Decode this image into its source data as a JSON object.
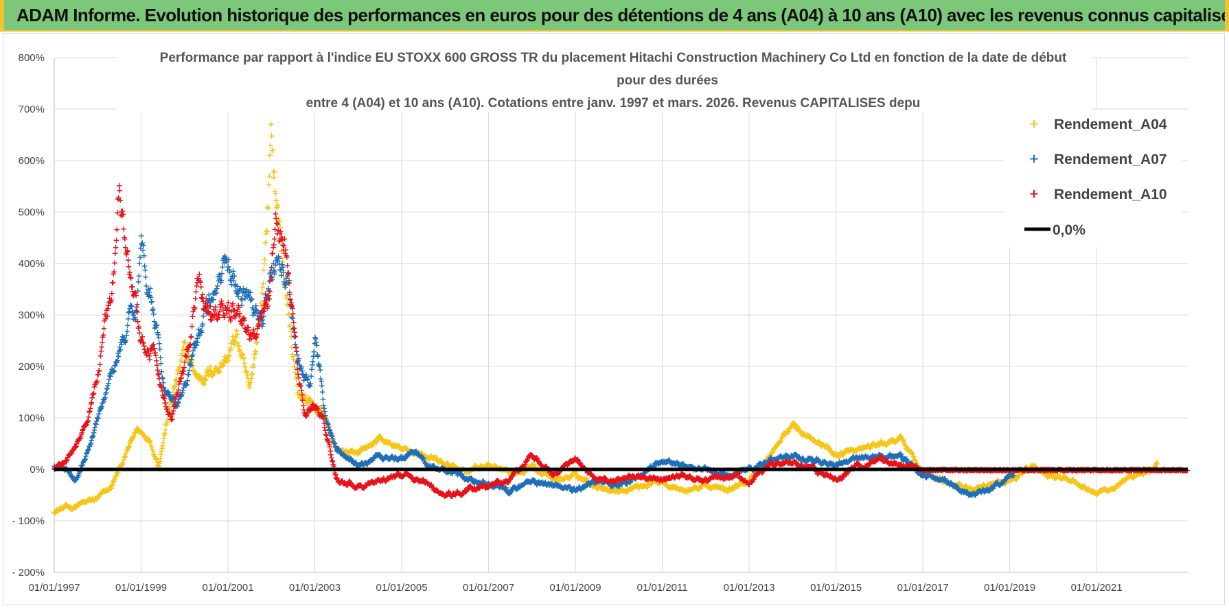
{
  "banner": {
    "title": "ADAM Informe. Evolution historique des performances en euros pour des détentions de 4 ans (A04) à 10 ans (A10) avec les revenus connus capitalisés"
  },
  "chart_data": {
    "type": "scatter",
    "title_lines": [
      "Performance par rapport à l'indice EU STOXX 600 GROSS TR  du placement Hitachi Construction Machinery Co Ltd en fonction de la date de début",
      "pour des durées",
      "entre 4 (A04) et 10 ans (A10). Cotations entre janv. 1997 et mars. 2026. Revenus CAPITALISES depu"
    ],
    "y_ticks": [
      "800%",
      "700%",
      "600%",
      "500%",
      "400%",
      "300%",
      "200%",
      "100%",
      "0%",
      "- 100%",
      "- 200%"
    ],
    "x_ticks": [
      "01/01/1997",
      "01/01/1999",
      "01/01/2001",
      "01/01/2003",
      "01/01/2005",
      "01/01/2007",
      "01/01/2009",
      "01/01/2011",
      "01/01/2013",
      "01/01/2015",
      "01/01/2017",
      "01/01/2019",
      "01/01/2021"
    ],
    "xlim": [
      1997.0,
      2023.1
    ],
    "ylim": [
      -200,
      800
    ],
    "grid": true,
    "legend_position": "top-right",
    "series": [
      {
        "name": "Rendement_A04",
        "color": "#f5c518",
        "end": 2022.4,
        "keypoints": [
          [
            1997.0,
            -78
          ],
          [
            1997.5,
            -70
          ],
          [
            1998.0,
            -55
          ],
          [
            1998.3,
            -35
          ],
          [
            1998.6,
            20
          ],
          [
            1998.9,
            80
          ],
          [
            1999.2,
            60
          ],
          [
            1999.4,
            10
          ],
          [
            1999.7,
            140
          ],
          [
            2000.0,
            230
          ],
          [
            2000.3,
            180
          ],
          [
            2000.6,
            190
          ],
          [
            2001.0,
            220
          ],
          [
            2001.2,
            260
          ],
          [
            2001.5,
            150
          ],
          [
            2001.8,
            350
          ],
          [
            2002.0,
            640
          ],
          [
            2002.2,
            450
          ],
          [
            2002.4,
            300
          ],
          [
            2002.6,
            150
          ],
          [
            2003.0,
            120
          ],
          [
            2003.2,
            110
          ],
          [
            2003.5,
            40
          ],
          [
            2004.0,
            30
          ],
          [
            2004.5,
            60
          ],
          [
            2005.0,
            40
          ],
          [
            2005.5,
            30
          ],
          [
            2006.0,
            10
          ],
          [
            2006.5,
            0
          ],
          [
            2007.0,
            10
          ],
          [
            2007.5,
            -10
          ],
          [
            2008.0,
            10
          ],
          [
            2008.5,
            -20
          ],
          [
            2009.0,
            -10
          ],
          [
            2009.5,
            -30
          ],
          [
            2010.0,
            -40
          ],
          [
            2010.5,
            -30
          ],
          [
            2011.0,
            -20
          ],
          [
            2011.5,
            -40
          ],
          [
            2012.0,
            -30
          ],
          [
            2012.5,
            -40
          ],
          [
            2013.0,
            -20
          ],
          [
            2013.5,
            30
          ],
          [
            2014.0,
            90
          ],
          [
            2014.5,
            60
          ],
          [
            2015.0,
            30
          ],
          [
            2015.5,
            40
          ],
          [
            2016.0,
            50
          ],
          [
            2016.5,
            60
          ],
          [
            2017.0,
            -5
          ],
          [
            2017.5,
            -20
          ],
          [
            2018.0,
            -40
          ],
          [
            2018.5,
            -30
          ],
          [
            2019.0,
            -20
          ],
          [
            2019.5,
            10
          ],
          [
            2020.0,
            -10
          ],
          [
            2020.5,
            -20
          ],
          [
            2021.0,
            -45
          ],
          [
            2021.5,
            -30
          ],
          [
            2022.0,
            -10
          ],
          [
            2022.4,
            10
          ]
        ]
      },
      {
        "name": "Rendement_A07",
        "color": "#1f6fb8",
        "end": 2019.1,
        "keypoints": [
          [
            1997.0,
            10
          ],
          [
            1997.3,
            0
          ],
          [
            1997.5,
            -20
          ],
          [
            1997.8,
            40
          ],
          [
            1998.0,
            100
          ],
          [
            1998.3,
            180
          ],
          [
            1998.6,
            260
          ],
          [
            1998.9,
            330
          ],
          [
            1999.0,
            440
          ],
          [
            1999.3,
            320
          ],
          [
            1999.5,
            170
          ],
          [
            1999.8,
            120
          ],
          [
            2000.0,
            160
          ],
          [
            2000.3,
            250
          ],
          [
            2000.6,
            350
          ],
          [
            2001.0,
            390
          ],
          [
            2001.3,
            340
          ],
          [
            2001.5,
            330
          ],
          [
            2001.8,
            300
          ],
          [
            2002.0,
            380
          ],
          [
            2002.2,
            400
          ],
          [
            2002.4,
            360
          ],
          [
            2002.6,
            200
          ],
          [
            2002.9,
            160
          ],
          [
            2003.0,
            260
          ],
          [
            2003.2,
            120
          ],
          [
            2003.5,
            40
          ],
          [
            2004.0,
            10
          ],
          [
            2004.5,
            30
          ],
          [
            2005.0,
            20
          ],
          [
            2005.3,
            40
          ],
          [
            2005.6,
            10
          ],
          [
            2006.0,
            0
          ],
          [
            2006.5,
            -10
          ],
          [
            2007.0,
            -30
          ],
          [
            2007.5,
            -40
          ],
          [
            2008.0,
            -20
          ],
          [
            2008.5,
            -30
          ],
          [
            2009.0,
            -40
          ],
          [
            2009.5,
            -20
          ],
          [
            2010.0,
            -30
          ],
          [
            2010.5,
            -10
          ],
          [
            2011.0,
            20
          ],
          [
            2011.5,
            10
          ],
          [
            2012.0,
            0
          ],
          [
            2012.5,
            -10
          ],
          [
            2013.0,
            0
          ],
          [
            2013.5,
            20
          ],
          [
            2014.0,
            30
          ],
          [
            2014.5,
            20
          ],
          [
            2015.0,
            10
          ],
          [
            2015.5,
            20
          ],
          [
            2016.0,
            30
          ],
          [
            2016.5,
            25
          ],
          [
            2017.0,
            -10
          ],
          [
            2017.5,
            -20
          ],
          [
            2018.0,
            -45
          ],
          [
            2018.5,
            -40
          ],
          [
            2019.0,
            -15
          ],
          [
            2019.1,
            -10
          ]
        ]
      },
      {
        "name": "Rendement_A10",
        "color": "#e8121a",
        "end": 2023.1,
        "keypoints": [
          [
            1997.0,
            5
          ],
          [
            1997.3,
            20
          ],
          [
            1997.6,
            60
          ],
          [
            1997.8,
            110
          ],
          [
            1998.0,
            200
          ],
          [
            1998.3,
            330
          ],
          [
            1998.5,
            520
          ],
          [
            1998.7,
            400
          ],
          [
            1999.0,
            240
          ],
          [
            1999.3,
            230
          ],
          [
            1999.5,
            140
          ],
          [
            1999.7,
            110
          ],
          [
            2000.0,
            200
          ],
          [
            2000.3,
            350
          ],
          [
            2000.6,
            300
          ],
          [
            2001.0,
            320
          ],
          [
            2001.3,
            290
          ],
          [
            2001.6,
            250
          ],
          [
            2001.9,
            320
          ],
          [
            2002.0,
            380
          ],
          [
            2002.1,
            480
          ],
          [
            2002.3,
            430
          ],
          [
            2002.4,
            380
          ],
          [
            2002.6,
            200
          ],
          [
            2002.8,
            100
          ],
          [
            2003.0,
            120
          ],
          [
            2003.2,
            100
          ],
          [
            2003.5,
            -20
          ],
          [
            2004.0,
            -30
          ],
          [
            2004.5,
            -20
          ],
          [
            2005.0,
            -10
          ],
          [
            2005.5,
            -20
          ],
          [
            2006.0,
            -50
          ],
          [
            2006.5,
            -40
          ],
          [
            2007.0,
            -30
          ],
          [
            2007.5,
            -20
          ],
          [
            2008.0,
            30
          ],
          [
            2008.5,
            -10
          ],
          [
            2009.0,
            20
          ],
          [
            2009.5,
            -20
          ],
          [
            2010.0,
            -20
          ],
          [
            2010.5,
            -10
          ],
          [
            2011.0,
            -20
          ],
          [
            2011.5,
            -10
          ],
          [
            2012.0,
            -20
          ],
          [
            2012.5,
            -10
          ],
          [
            2013.0,
            -20
          ],
          [
            2013.5,
            10
          ],
          [
            2014.0,
            20
          ],
          [
            2014.5,
            0
          ],
          [
            2015.0,
            -20
          ],
          [
            2015.5,
            10
          ],
          [
            2016.0,
            20
          ],
          [
            2016.5,
            10
          ],
          [
            2017.0,
            0
          ],
          [
            2018.0,
            0
          ],
          [
            2019.0,
            0
          ],
          [
            2020.0,
            0
          ],
          [
            2021.0,
            0
          ],
          [
            2022.0,
            0
          ],
          [
            2023.1,
            0
          ]
        ]
      }
    ],
    "reference_line": {
      "name": "0,0%",
      "value": 0,
      "color": "#000000"
    }
  }
}
